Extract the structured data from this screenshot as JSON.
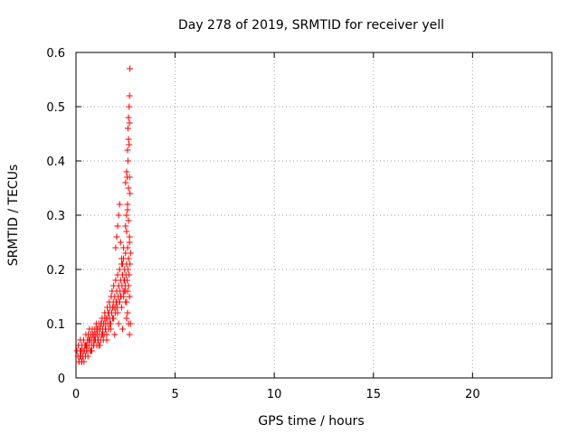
{
  "chart_data": {
    "type": "scatter",
    "title": "Day 278 of 2019, SRMTID for receiver yell",
    "xlabel": "GPS time / hours",
    "ylabel": "SRMTID / TECUs",
    "xlim": [
      0,
      24
    ],
    "ylim": [
      0,
      0.6
    ],
    "xticks": [
      0,
      5,
      10,
      15,
      20
    ],
    "xtick_labels": [
      "0",
      "5",
      "10",
      "15",
      "20"
    ],
    "yticks": [
      0,
      0.1,
      0.2,
      0.3,
      0.4,
      0.5,
      0.6
    ],
    "ytick_labels": [
      "0",
      "0.1",
      "0.2",
      "0.3",
      "0.4",
      "0.5",
      "0.6"
    ],
    "grid": true,
    "marker": "+",
    "color": "#ff0000",
    "series": [
      {
        "name": "SRMTID",
        "x": [
          0.05,
          0.1,
          0.12,
          0.15,
          0.2,
          0.22,
          0.25,
          0.28,
          0.3,
          0.32,
          0.35,
          0.38,
          0.4,
          0.42,
          0.45,
          0.48,
          0.5,
          0.52,
          0.55,
          0.58,
          0.6,
          0.62,
          0.65,
          0.68,
          0.7,
          0.72,
          0.75,
          0.78,
          0.8,
          0.82,
          0.85,
          0.88,
          0.9,
          0.92,
          0.95,
          0.98,
          1.0,
          1.02,
          1.05,
          1.08,
          1.1,
          1.12,
          1.15,
          1.18,
          1.2,
          1.22,
          1.25,
          1.28,
          1.3,
          1.32,
          1.35,
          1.38,
          1.4,
          1.42,
          1.45,
          1.48,
          1.5,
          1.52,
          1.55,
          1.58,
          1.6,
          1.62,
          1.65,
          1.68,
          1.7,
          1.72,
          1.75,
          1.78,
          1.8,
          1.82,
          1.85,
          1.88,
          1.9,
          1.92,
          1.95,
          1.98,
          2.0,
          2.02,
          2.05,
          2.08,
          2.1,
          2.12,
          2.15,
          2.18,
          2.2,
          2.22,
          2.25,
          2.28,
          2.3,
          2.32,
          2.35,
          2.38,
          2.4,
          2.42,
          2.45,
          2.48,
          2.5,
          2.52,
          2.55,
          2.58,
          2.6,
          2.62,
          2.65,
          2.68,
          2.7,
          2.72,
          2.75,
          0.2,
          0.3,
          0.4,
          0.5,
          0.6,
          0.7,
          0.8,
          0.9,
          1.0,
          1.1,
          1.2,
          1.3,
          1.4,
          1.5,
          1.6,
          1.7,
          1.8,
          1.9,
          2.0,
          2.1,
          2.2,
          2.3,
          2.4,
          2.5,
          2.6,
          2.7,
          0.15,
          0.35,
          0.55,
          0.75,
          0.95,
          1.15,
          1.35,
          1.55,
          1.75,
          1.95,
          2.15,
          2.35,
          2.55,
          2.75,
          0.25,
          0.45,
          0.65,
          0.85,
          1.05,
          1.25,
          1.45,
          1.65,
          1.85,
          2.05,
          2.25,
          2.45,
          2.65,
          2.5,
          2.55,
          2.6,
          2.62,
          2.65,
          2.68,
          2.7,
          2.72,
          2.6,
          2.65,
          2.7,
          2.58,
          2.62,
          2.68,
          2.5,
          2.55,
          2.6,
          2.65,
          2.7,
          2.72,
          2.55,
          2.6,
          2.65,
          2.7,
          2.0,
          2.05,
          2.1,
          2.15,
          2.2,
          2.25,
          2.3,
          2.35,
          2.4,
          2.45,
          2.5,
          2.55,
          2.6,
          2.65,
          2.7
        ],
        "y": [
          0.05,
          0.04,
          0.06,
          0.03,
          0.05,
          0.07,
          0.04,
          0.03,
          0.06,
          0.05,
          0.04,
          0.07,
          0.03,
          0.05,
          0.06,
          0.04,
          0.08,
          0.05,
          0.06,
          0.07,
          0.05,
          0.08,
          0.06,
          0.09,
          0.07,
          0.05,
          0.08,
          0.06,
          0.07,
          0.09,
          0.08,
          0.06,
          0.07,
          0.08,
          0.09,
          0.07,
          0.08,
          0.1,
          0.06,
          0.08,
          0.09,
          0.07,
          0.1,
          0.08,
          0.06,
          0.09,
          0.07,
          0.1,
          0.08,
          0.11,
          0.09,
          0.07,
          0.1,
          0.08,
          0.12,
          0.09,
          0.1,
          0.11,
          0.08,
          0.13,
          0.1,
          0.12,
          0.09,
          0.14,
          0.11,
          0.13,
          0.1,
          0.15,
          0.12,
          0.16,
          0.11,
          0.14,
          0.17,
          0.13,
          0.15,
          0.12,
          0.18,
          0.14,
          0.16,
          0.13,
          0.19,
          0.15,
          0.17,
          0.14,
          0.2,
          0.16,
          0.18,
          0.15,
          0.21,
          0.17,
          0.19,
          0.16,
          0.22,
          0.18,
          0.2,
          0.17,
          0.23,
          0.19,
          0.21,
          0.18,
          0.24,
          0.2,
          0.22,
          0.19,
          0.25,
          0.21,
          0.23,
          0.04,
          0.03,
          0.05,
          0.06,
          0.04,
          0.07,
          0.05,
          0.06,
          0.08,
          0.07,
          0.09,
          0.08,
          0.1,
          0.09,
          0.11,
          0.1,
          0.12,
          0.11,
          0.13,
          0.12,
          0.14,
          0.13,
          0.15,
          0.14,
          0.16,
          0.15,
          0.03,
          0.04,
          0.06,
          0.05,
          0.07,
          0.06,
          0.08,
          0.07,
          0.09,
          0.08,
          0.1,
          0.09,
          0.11,
          0.1,
          0.05,
          0.06,
          0.07,
          0.08,
          0.09,
          0.1,
          0.11,
          0.12,
          0.13,
          0.14,
          0.15,
          0.16,
          0.17,
          0.36,
          0.38,
          0.42,
          0.46,
          0.48,
          0.5,
          0.52,
          0.57,
          0.42,
          0.44,
          0.47,
          0.37,
          0.4,
          0.43,
          0.28,
          0.3,
          0.32,
          0.29,
          0.26,
          0.34,
          0.27,
          0.31,
          0.35,
          0.37,
          0.24,
          0.26,
          0.28,
          0.3,
          0.32,
          0.25,
          0.22,
          0.21,
          0.24,
          0.18,
          0.16,
          0.14,
          0.12,
          0.1,
          0.08
        ]
      }
    ]
  }
}
